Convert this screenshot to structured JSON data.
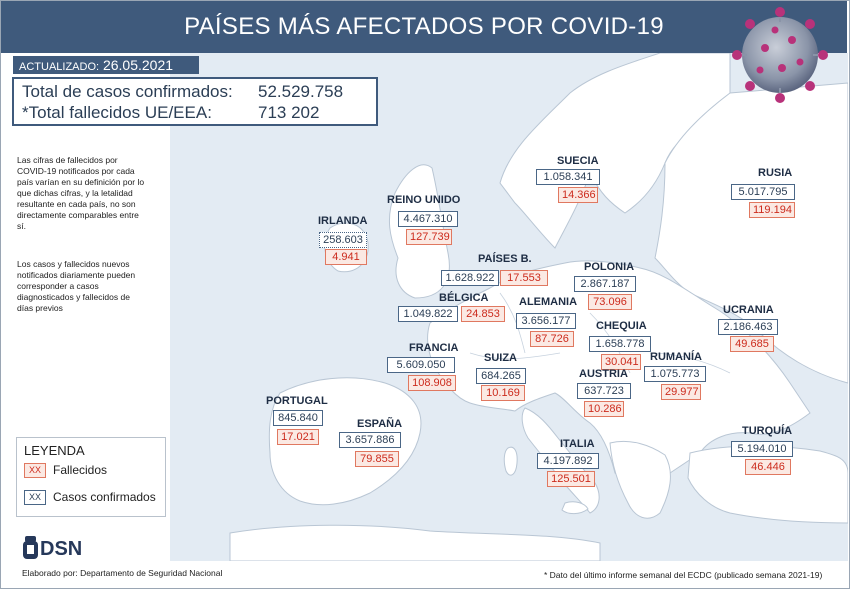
{
  "header": {
    "title": "PAÍSES MÁS AFECTADOS POR COVID-19"
  },
  "updated": {
    "label": "ACTUALIZADO:",
    "date": "26.05.2021"
  },
  "totals": {
    "cases_label": "Total de casos confirmados:",
    "cases_value": "52.529.758",
    "deaths_label": "*Total fallecidos UE/EEA:",
    "deaths_value": "713 202"
  },
  "notes": {
    "note1": "Las cifras de fallecidos por COVID-19 notificados por cada país varían en su definición por lo que dichas cifras, y la letalidad resultante en cada país, no son directamente comparables entre sí.",
    "note2": "Los casos y fallecidos nuevos notificados diariamente pueden corresponder a casos diagnosticados y fallecidos de días previos"
  },
  "legend": {
    "title": "LEYENDA",
    "deaths_sample": "XX",
    "deaths_label": "Fallecidos",
    "cases_sample": "XX",
    "cases_label": "Casos confirmados"
  },
  "countries": {
    "irlanda": {
      "name": "IRLANDA",
      "cases": "258.603",
      "deaths": "4.941"
    },
    "reino_unido": {
      "name": "REINO UNIDO",
      "cases": "4.467.310",
      "deaths": "127.739"
    },
    "suecia": {
      "name": "SUECIA",
      "cases": "1.058.341",
      "deaths": "14.366"
    },
    "rusia": {
      "name": "RUSIA",
      "cases": "5.017.795",
      "deaths": "119.194"
    },
    "paises_bajos": {
      "name": "PAÍSES B.",
      "cases": "1.628.922",
      "deaths": "17.553"
    },
    "polonia": {
      "name": "POLONIA",
      "cases": "2.867.187",
      "deaths": "73.096"
    },
    "belgica": {
      "name": "BÉLGICA",
      "cases": "1.049.822",
      "deaths": "24.853"
    },
    "alemania": {
      "name": "ALEMANIA",
      "cases": "3.656.177",
      "deaths": "87.726"
    },
    "ucrania": {
      "name": "UCRANIA",
      "cases": "2.186.463",
      "deaths": "49.685"
    },
    "chequia": {
      "name": "CHEQUIA",
      "cases": "1.658.778",
      "deaths": "30.041"
    },
    "francia": {
      "name": "FRANCIA",
      "cases": "5.609.050",
      "deaths": "108.908"
    },
    "suiza": {
      "name": "SUIZA",
      "cases": "684.265",
      "deaths": "10.169"
    },
    "rumania": {
      "name": "RUMANÍA",
      "cases": "1.075.773",
      "deaths": "29.977"
    },
    "austria": {
      "name": "AUSTRIA",
      "cases": "637.723",
      "deaths": "10.286"
    },
    "portugal": {
      "name": "PORTUGAL",
      "cases": "845.840",
      "deaths": "17.021"
    },
    "espana": {
      "name": "ESPAÑA",
      "cases": "3.657.886",
      "deaths": "79.855"
    },
    "italia": {
      "name": "ITALIA",
      "cases": "4.197.892",
      "deaths": "125.501"
    },
    "turquia": {
      "name": "TURQUÍA",
      "cases": "5.194.010",
      "deaths": "46.446"
    }
  },
  "footer": {
    "logo": "DSN",
    "credit": "Elaborado por: Departamento de Seguridad Nacional",
    "source": "* Dato del último informe semanal del ECDC (publicado semana 2021-19)"
  },
  "colors": {
    "header": "#3f5a7c",
    "deaths": "#cc2b1d",
    "cases_border": "#4a6686",
    "land": "#ffffff",
    "sea": "#e3ebf3"
  }
}
